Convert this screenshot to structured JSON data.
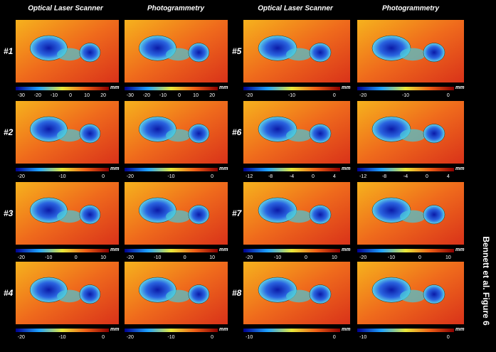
{
  "headers": [
    "Optical Laser Scanner",
    "Photogrammetry",
    "Optical Laser Scanner",
    "Photogrammetry"
  ],
  "specimens": [
    {
      "label": "#1",
      "ticks": [
        -30,
        -20,
        -10,
        0,
        10,
        20
      ],
      "unit": "mm"
    },
    {
      "label": "#2",
      "ticks": [
        -20,
        -10,
        0
      ],
      "unit": "mm"
    },
    {
      "label": "#3",
      "ticks": [
        -20,
        -10,
        0,
        10
      ],
      "unit": "mm"
    },
    {
      "label": "#4",
      "ticks": [
        -20,
        -10,
        0
      ],
      "unit": "mm"
    },
    {
      "label": "#5",
      "ticks": [
        -20,
        -10,
        0
      ],
      "unit": "mm"
    },
    {
      "label": "#6",
      "ticks": [
        -12,
        -8,
        -4,
        0,
        4
      ],
      "unit": "mm"
    },
    {
      "label": "#7",
      "ticks": [
        -20,
        -10,
        0,
        10
      ],
      "unit": "mm"
    },
    {
      "label": "#8",
      "ticks": [
        -10,
        0
      ],
      "unit": "mm"
    }
  ],
  "caption": "Bennett et al. Figure 6"
}
